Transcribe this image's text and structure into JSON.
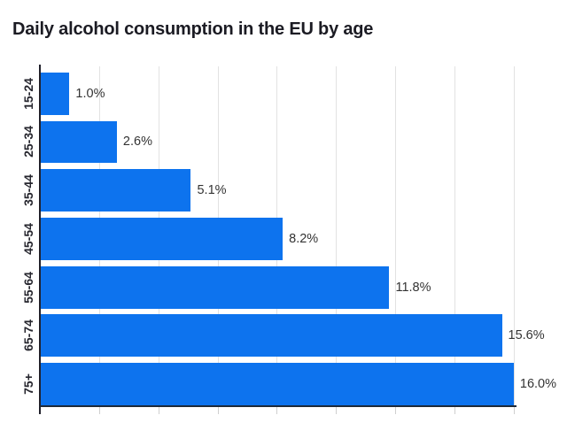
{
  "chart_data": {
    "type": "bar",
    "orientation": "horizontal",
    "title": "Daily alcohol consumption in the EU by age",
    "categories": [
      "15-24",
      "25-34",
      "35-44",
      "45-54",
      "55-64",
      "65-74",
      "75+"
    ],
    "values": [
      1.0,
      2.6,
      5.1,
      8.2,
      11.8,
      15.6,
      16.0
    ],
    "value_labels": [
      "1.0%",
      "2.6%",
      "5.1%",
      "8.2%",
      "11.8%",
      "15.6%",
      "16.0%"
    ],
    "xlabel": "",
    "ylabel": "",
    "xlim": [
      0,
      17
    ],
    "grid": true,
    "grid_step_pct": 2,
    "legend": false,
    "colors": {
      "bar": "#0d73ee",
      "gridline": "#e2e2e2",
      "tick": "#cfcfcf",
      "axis": "#20202a",
      "baseline": "#1e2a3a",
      "title_text": "#1b1b23",
      "category_text": "#26262e",
      "value_text": "#333333",
      "background": "#ffffff"
    }
  }
}
